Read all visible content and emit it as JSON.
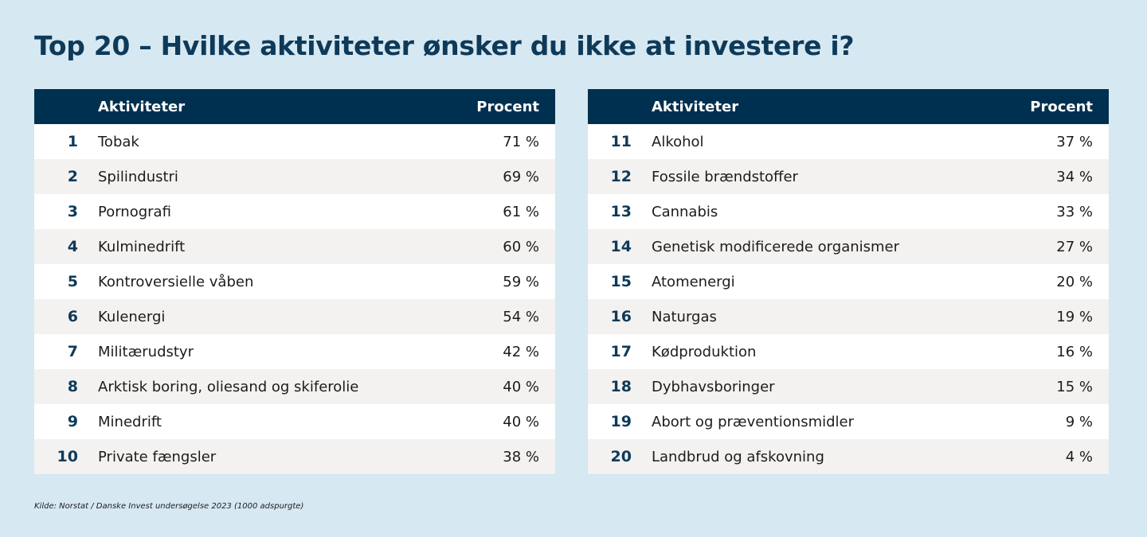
{
  "title": "Top 20 – Hvilke aktiviteter ønsker du ikke at investere i?",
  "source": "Kilde: Norstat / Danske Invest undersøgelse 2023 (1000 adspurgte)",
  "header": {
    "activity": "Aktiviteter",
    "percent": "Procent"
  },
  "colors": {
    "header_bg": "#003050",
    "background": "#d6e8f1",
    "stripe": "#f3f2f0",
    "title": "#0e3a5a"
  },
  "chart_data": {
    "type": "table",
    "columns": [
      "",
      "Aktiviteter",
      "Procent"
    ],
    "rows": [
      {
        "rank": "1",
        "activity": "Tobak",
        "percent": "71 %",
        "value": 71
      },
      {
        "rank": "2",
        "activity": "Spilindustri",
        "percent": "69 %",
        "value": 69
      },
      {
        "rank": "3",
        "activity": "Pornografi",
        "percent": "61 %",
        "value": 61
      },
      {
        "rank": "4",
        "activity": "Kulminedrift",
        "percent": "60 %",
        "value": 60
      },
      {
        "rank": "5",
        "activity": "Kontroversielle våben",
        "percent": "59 %",
        "value": 59
      },
      {
        "rank": "6",
        "activity": "Kulenergi",
        "percent": "54 %",
        "value": 54
      },
      {
        "rank": "7",
        "activity": "Militærudstyr",
        "percent": "42 %",
        "value": 42
      },
      {
        "rank": "8",
        "activity": "Arktisk boring, oliesand og skiferolie",
        "percent": "40 %",
        "value": 40
      },
      {
        "rank": "9",
        "activity": "Minedrift",
        "percent": "40 %",
        "value": 40
      },
      {
        "rank": "10",
        "activity": "Private fængsler",
        "percent": "38 %",
        "value": 38
      },
      {
        "rank": "11",
        "activity": "Alkohol",
        "percent": "37 %",
        "value": 37
      },
      {
        "rank": "12",
        "activity": "Fossile brændstoffer",
        "percent": "34 %",
        "value": 34
      },
      {
        "rank": "13",
        "activity": "Cannabis",
        "percent": "33 %",
        "value": 33
      },
      {
        "rank": "14",
        "activity": "Genetisk modificerede organismer",
        "percent": "27 %",
        "value": 27
      },
      {
        "rank": "15",
        "activity": "Atomenergi",
        "percent": "20 %",
        "value": 20
      },
      {
        "rank": "16",
        "activity": "Naturgas",
        "percent": "19 %",
        "value": 19
      },
      {
        "rank": "17",
        "activity": "Kødproduktion",
        "percent": "16 %",
        "value": 16
      },
      {
        "rank": "18",
        "activity": "Dybhavsboringer",
        "percent": "15 %",
        "value": 15
      },
      {
        "rank": "19",
        "activity": "Abort og præventionsmidler",
        "percent": "9 %",
        "value": 9
      },
      {
        "rank": "20",
        "activity": "Landbrud og afskovning",
        "percent": "4 %",
        "value": 4
      }
    ]
  }
}
